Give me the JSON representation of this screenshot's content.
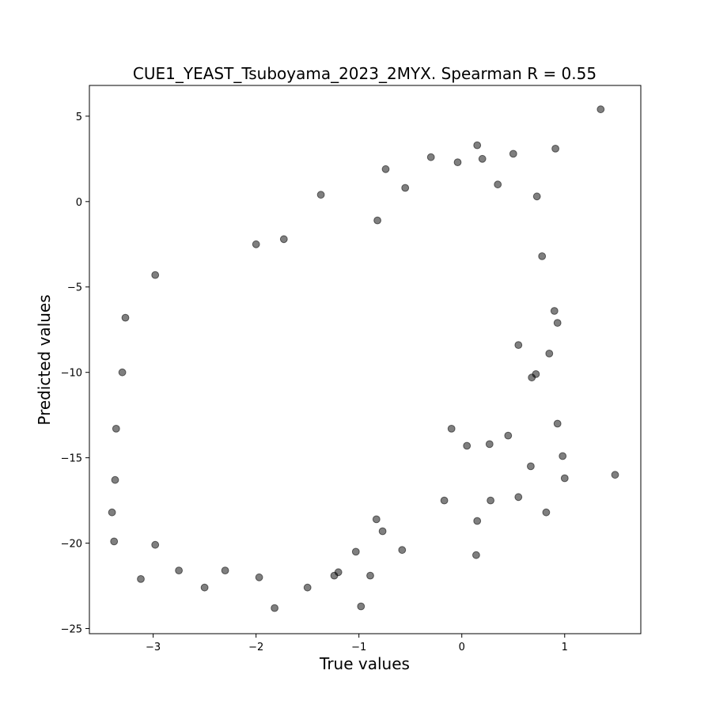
{
  "chart_data": {
    "type": "scatter",
    "title": "CUE1_YEAST_Tsuboyama_2023_2MYX. Spearman R = 0.55",
    "xlabel": "True values",
    "ylabel": "Predicted values",
    "xlim": [
      -3.62,
      1.74
    ],
    "ylim": [
      -25.3,
      6.8
    ],
    "xticks": [
      -3,
      -2,
      -1,
      0,
      1
    ],
    "yticks": [
      -25,
      -20,
      -15,
      -10,
      -5,
      0,
      5
    ],
    "grid": false,
    "legend": "none",
    "point_color": "#000000",
    "point_opacity": 0.5,
    "n_points": 1500,
    "spearman_r": 0.55,
    "points": [
      [
        1.35,
        5.4
      ],
      [
        1.49,
        -16.0
      ],
      [
        1.0,
        -16.2
      ],
      [
        0.98,
        -14.9
      ],
      [
        0.93,
        -7.1
      ],
      [
        0.93,
        -13.0
      ],
      [
        0.9,
        -6.4
      ],
      [
        0.85,
        -8.9
      ],
      [
        0.82,
        -18.2
      ],
      [
        0.78,
        -3.2
      ],
      [
        0.72,
        -10.1
      ],
      [
        0.68,
        -10.3
      ],
      [
        0.67,
        -15.5
      ],
      [
        0.55,
        -17.3
      ],
      [
        0.55,
        -8.4
      ],
      [
        0.45,
        -13.7
      ],
      [
        0.28,
        -17.5
      ],
      [
        0.27,
        -14.2
      ],
      [
        0.15,
        -18.7
      ],
      [
        0.14,
        -20.7
      ],
      [
        0.15,
        3.3
      ],
      [
        0.91,
        3.1
      ],
      [
        0.5,
        2.8
      ],
      [
        0.73,
        0.3
      ],
      [
        0.05,
        -14.3
      ],
      [
        -0.1,
        -13.3
      ],
      [
        -0.17,
        -17.5
      ],
      [
        -0.58,
        -20.4
      ],
      [
        -0.77,
        -19.3
      ],
      [
        -0.83,
        -18.6
      ],
      [
        -0.89,
        -21.9
      ],
      [
        -0.98,
        -23.7
      ],
      [
        -1.03,
        -20.5
      ],
      [
        -1.2,
        -21.7
      ],
      [
        -1.24,
        -21.9
      ],
      [
        -1.5,
        -22.6
      ],
      [
        -1.82,
        -23.8
      ],
      [
        -1.97,
        -22.0
      ],
      [
        -2.3,
        -21.6
      ],
      [
        -2.5,
        -22.6
      ],
      [
        -3.12,
        -22.1
      ],
      [
        -3.38,
        -19.9
      ],
      [
        -3.4,
        -18.2
      ],
      [
        -2.75,
        -21.6
      ],
      [
        -2.98,
        -20.1
      ],
      [
        -3.37,
        -16.3
      ],
      [
        -3.36,
        -13.3
      ],
      [
        -3.3,
        -10.0
      ],
      [
        -3.27,
        -6.8
      ],
      [
        -2.98,
        -4.3
      ],
      [
        -2.0,
        -2.5
      ],
      [
        -1.73,
        -2.2
      ],
      [
        -1.37,
        0.4
      ],
      [
        -0.74,
        1.9
      ],
      [
        -0.3,
        2.6
      ],
      [
        -0.04,
        2.3
      ],
      [
        0.2,
        2.5
      ],
      [
        -0.55,
        0.8
      ],
      [
        0.35,
        1.0
      ],
      [
        -0.82,
        -1.1
      ]
    ]
  }
}
